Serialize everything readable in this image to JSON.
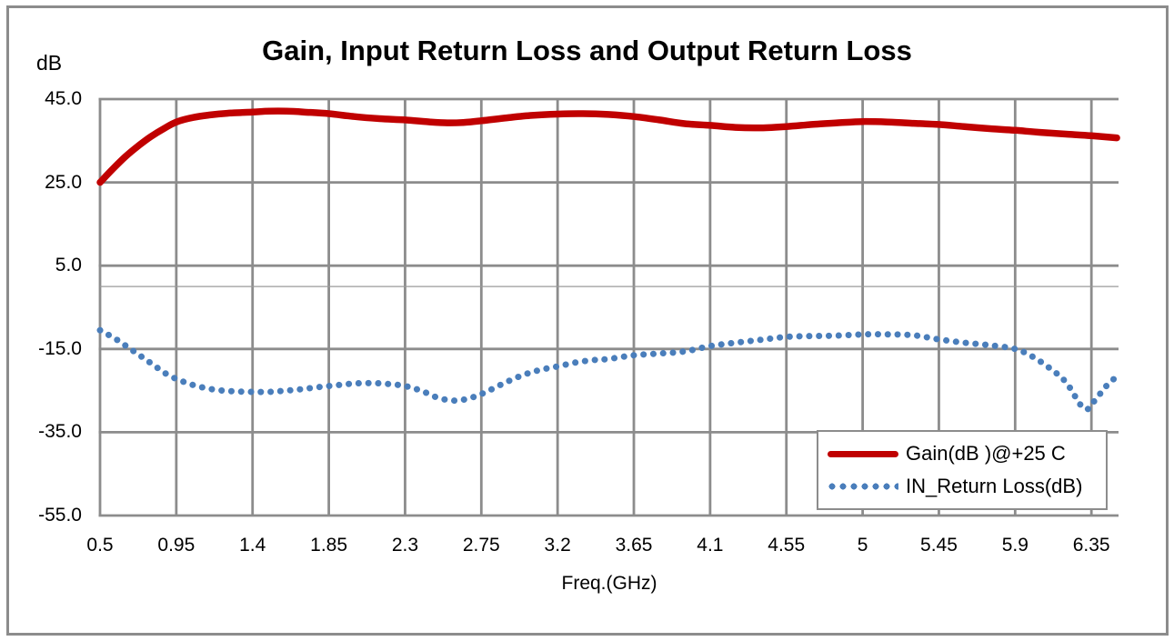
{
  "window": {
    "background": "#ffffff",
    "frame_color": "#8c8c8c"
  },
  "chart_data": {
    "type": "line",
    "title": "Gain, Input Return Loss and Output Return Loss",
    "y_unit_label": "dB",
    "xlabel": "Freq.(GHz)",
    "x_range": [
      0.5,
      6.51
    ],
    "y_range": [
      -55,
      45
    ],
    "x_tick_values": [
      0.5,
      0.95,
      1.4,
      1.85,
      2.3,
      2.75,
      3.2,
      3.65,
      4.1,
      4.55,
      5,
      5.45,
      5.9,
      6.35
    ],
    "x_tick_labels": [
      "0.5",
      "0.95",
      "1.4",
      "1.85",
      "2.3",
      "2.75",
      "3.2",
      "3.65",
      "4.1",
      "4.55",
      "5",
      "5.45",
      "5.9",
      "6.35"
    ],
    "y_tick_values": [
      45,
      25,
      5,
      -15,
      -35,
      -55
    ],
    "y_tick_labels": [
      "45.0",
      "25.0",
      "5.0",
      "-15.0",
      "-35.0",
      "-55.0"
    ],
    "grid": true,
    "zero_line": true,
    "legend_position": "inside-bottom-right",
    "colors": {
      "grid": "#8c8c8c",
      "zero_line": "#9a9a9a",
      "gain": "#c00000",
      "return_loss": "#4a7ebb"
    },
    "series": [
      {
        "name": "Gain(dB )@+25 C",
        "color": "#c00000",
        "style": "solid",
        "points": [
          [
            0.5,
            25.0
          ],
          [
            0.57,
            28.0
          ],
          [
            0.65,
            31.2
          ],
          [
            0.73,
            33.9
          ],
          [
            0.8,
            36.0
          ],
          [
            0.88,
            38.0
          ],
          [
            0.95,
            39.5
          ],
          [
            1.05,
            40.6
          ],
          [
            1.15,
            41.2
          ],
          [
            1.25,
            41.6
          ],
          [
            1.4,
            41.9
          ],
          [
            1.5,
            42.1
          ],
          [
            1.6,
            42.1
          ],
          [
            1.7,
            41.9
          ],
          [
            1.85,
            41.5
          ],
          [
            2.0,
            40.8
          ],
          [
            2.15,
            40.3
          ],
          [
            2.3,
            40.0
          ],
          [
            2.45,
            39.5
          ],
          [
            2.55,
            39.3
          ],
          [
            2.65,
            39.4
          ],
          [
            2.75,
            39.8
          ],
          [
            2.9,
            40.5
          ],
          [
            3.05,
            41.1
          ],
          [
            3.2,
            41.4
          ],
          [
            3.35,
            41.5
          ],
          [
            3.5,
            41.3
          ],
          [
            3.65,
            40.8
          ],
          [
            3.8,
            40.0
          ],
          [
            3.95,
            39.1
          ],
          [
            4.1,
            38.7
          ],
          [
            4.25,
            38.2
          ],
          [
            4.4,
            38.1
          ],
          [
            4.55,
            38.4
          ],
          [
            4.7,
            38.9
          ],
          [
            4.85,
            39.3
          ],
          [
            5.0,
            39.6
          ],
          [
            5.15,
            39.5
          ],
          [
            5.3,
            39.2
          ],
          [
            5.45,
            38.9
          ],
          [
            5.6,
            38.4
          ],
          [
            5.75,
            37.9
          ],
          [
            5.9,
            37.5
          ],
          [
            6.05,
            37.0
          ],
          [
            6.2,
            36.6
          ],
          [
            6.35,
            36.2
          ],
          [
            6.5,
            35.7
          ]
        ]
      },
      {
        "name": "IN_Return Loss(dB)",
        "color": "#4a7ebb",
        "style": "dotted",
        "points": [
          [
            0.5,
            -10.5
          ],
          [
            0.6,
            -12.8
          ],
          [
            0.7,
            -15.6
          ],
          [
            0.8,
            -18.4
          ],
          [
            0.9,
            -21.2
          ],
          [
            1.0,
            -23.0
          ],
          [
            1.1,
            -24.2
          ],
          [
            1.2,
            -24.9
          ],
          [
            1.3,
            -25.2
          ],
          [
            1.4,
            -25.3
          ],
          [
            1.5,
            -25.3
          ],
          [
            1.6,
            -25.0
          ],
          [
            1.7,
            -24.6
          ],
          [
            1.8,
            -24.1
          ],
          [
            1.9,
            -23.7
          ],
          [
            2.0,
            -23.3
          ],
          [
            2.1,
            -23.2
          ],
          [
            2.2,
            -23.4
          ],
          [
            2.3,
            -23.9
          ],
          [
            2.4,
            -25.1
          ],
          [
            2.5,
            -26.8
          ],
          [
            2.6,
            -27.4
          ],
          [
            2.7,
            -26.6
          ],
          [
            2.8,
            -24.9
          ],
          [
            2.9,
            -22.9
          ],
          [
            3.0,
            -21.2
          ],
          [
            3.1,
            -20.0
          ],
          [
            3.2,
            -19.2
          ],
          [
            3.3,
            -18.3
          ],
          [
            3.4,
            -17.7
          ],
          [
            3.5,
            -17.4
          ],
          [
            3.65,
            -16.5
          ],
          [
            3.8,
            -16.1
          ],
          [
            3.95,
            -15.6
          ],
          [
            4.1,
            -14.3
          ],
          [
            4.25,
            -13.5
          ],
          [
            4.4,
            -12.8
          ],
          [
            4.55,
            -12.1
          ],
          [
            4.7,
            -11.9
          ],
          [
            4.85,
            -11.8
          ],
          [
            5.0,
            -11.5
          ],
          [
            5.15,
            -11.5
          ],
          [
            5.3,
            -11.7
          ],
          [
            5.45,
            -12.7
          ],
          [
            5.6,
            -13.5
          ],
          [
            5.75,
            -14.1
          ],
          [
            5.9,
            -15.0
          ],
          [
            6.0,
            -16.8
          ],
          [
            6.1,
            -19.5
          ],
          [
            6.2,
            -23.0
          ],
          [
            6.31,
            -29.4
          ],
          [
            6.38,
            -26.8
          ],
          [
            6.44,
            -23.8
          ],
          [
            6.5,
            -21.6
          ]
        ]
      }
    ]
  }
}
